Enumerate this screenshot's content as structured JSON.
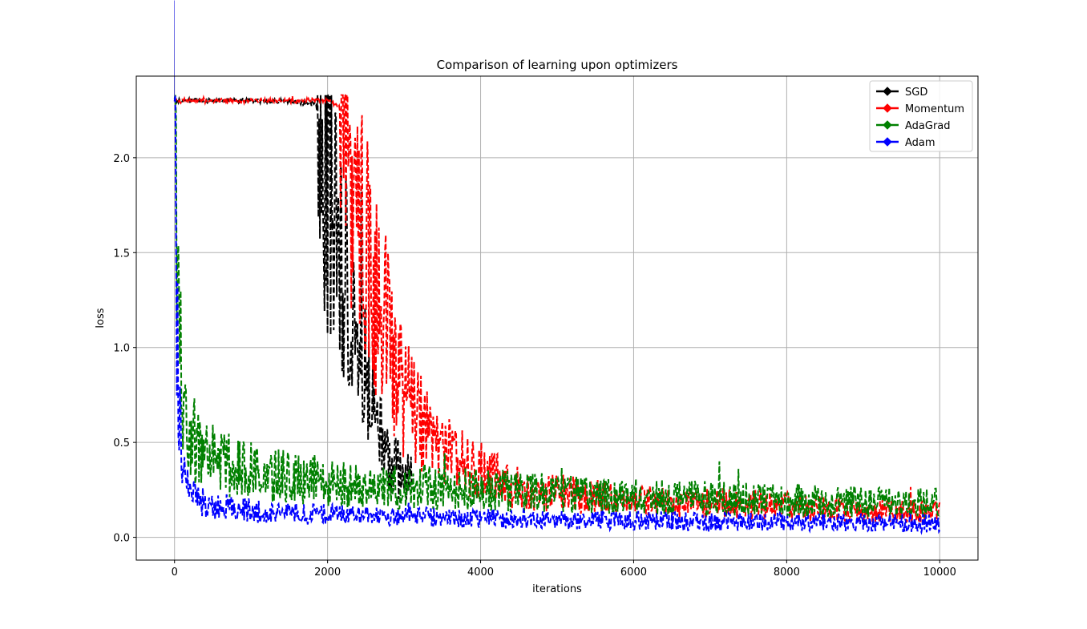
{
  "chart_data": {
    "type": "line",
    "title": "Comparison of learning upon optimizers",
    "xlabel": "iterations",
    "ylabel": "loss",
    "xlim": [
      -500,
      10500
    ],
    "ylim": [
      -0.12,
      2.43
    ],
    "xticks": [
      0,
      2000,
      4000,
      6000,
      8000,
      10000
    ],
    "yticks": [
      0.0,
      0.5,
      1.0,
      1.5,
      2.0
    ],
    "xtick_labels": [
      "0",
      "2000",
      "4000",
      "6000",
      "8000",
      "10000"
    ],
    "ytick_labels": [
      "0.0",
      "0.5",
      "1.0",
      "1.5",
      "2.0"
    ],
    "grid": true,
    "legend_position": "top-right",
    "marker": "diamond",
    "series": [
      {
        "name": "SGD",
        "color": "#000000",
        "x": [
          0,
          500,
          1000,
          1500,
          1850,
          1950,
          2050,
          2150,
          2250,
          2350,
          2450,
          2550,
          2650,
          2750,
          2850,
          2950,
          3100
        ],
        "y": [
          2.3,
          2.3,
          2.3,
          2.3,
          2.28,
          2.05,
          1.78,
          1.55,
          1.35,
          1.12,
          0.92,
          0.75,
          0.62,
          0.5,
          0.4,
          0.34,
          0.3
        ]
      },
      {
        "name": "Momentum",
        "color": "#ff0000",
        "x": [
          0,
          500,
          1000,
          1500,
          2000,
          2150,
          2250,
          2350,
          2450,
          2550,
          2650,
          2750,
          2850,
          2950,
          3100,
          3300,
          3500,
          3800,
          4100,
          4400,
          4800,
          5500,
          6500,
          7500,
          8500,
          9500,
          10000
        ],
        "y": [
          2.3,
          2.3,
          2.3,
          2.3,
          2.3,
          2.27,
          2.1,
          1.85,
          1.62,
          1.45,
          1.28,
          1.12,
          0.95,
          0.8,
          0.66,
          0.55,
          0.46,
          0.39,
          0.33,
          0.28,
          0.24,
          0.21,
          0.19,
          0.17,
          0.15,
          0.14,
          0.13
        ]
      },
      {
        "name": "AdaGrad",
        "color": "#008000",
        "x": [
          0,
          20,
          40,
          60,
          80,
          100,
          130,
          170,
          220,
          300,
          400,
          600,
          900,
          1300,
          1800,
          2500,
          3500,
          4500,
          5500,
          6500,
          7500,
          8500,
          9500,
          10000
        ],
        "y": [
          2.3,
          1.95,
          1.55,
          1.2,
          1.0,
          0.85,
          0.72,
          0.62,
          0.55,
          0.48,
          0.44,
          0.4,
          0.36,
          0.33,
          0.3,
          0.28,
          0.26,
          0.24,
          0.22,
          0.21,
          0.2,
          0.19,
          0.18,
          0.18
        ]
      },
      {
        "name": "Adam",
        "color": "#0000ff",
        "x": [
          0,
          15,
          30,
          50,
          70,
          100,
          150,
          200,
          300,
          500,
          800,
          1200,
          2000,
          3000,
          4000,
          5000,
          6000,
          7000,
          8000,
          9000,
          10000
        ],
        "y": [
          2.3,
          1.7,
          1.1,
          0.75,
          0.55,
          0.4,
          0.3,
          0.24,
          0.2,
          0.17,
          0.15,
          0.13,
          0.12,
          0.11,
          0.1,
          0.09,
          0.09,
          0.08,
          0.08,
          0.08,
          0.07
        ]
      }
    ]
  }
}
